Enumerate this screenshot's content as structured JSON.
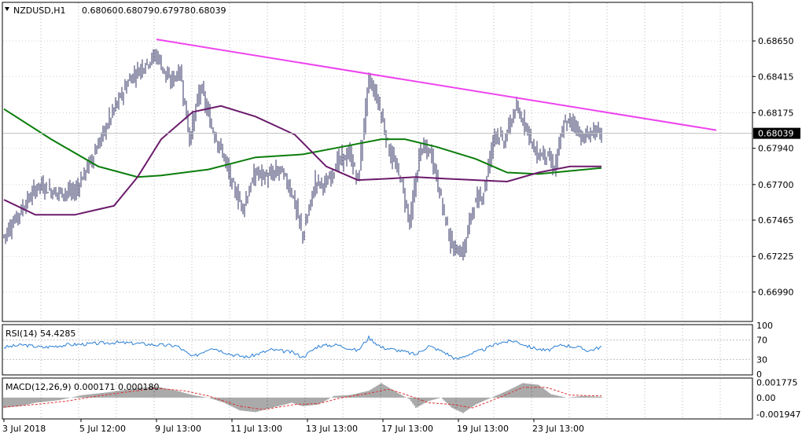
{
  "header": {
    "symbol": "NZDUSD,H1",
    "open": "0.68060",
    "high": "0.68079",
    "low": "0.67978",
    "close": "0.68039"
  },
  "current_price_label": "0.68039",
  "colors": {
    "trendline": "#ee44ee",
    "ma_green": "#0a7d0a",
    "ma_purple": "#6b1a6b",
    "candle_wick": "#333366",
    "rsi": "#2a7fd4",
    "macd_hist": "#555555",
    "macd_signal": "#dd3333",
    "price_badge_bg": "#000000"
  },
  "chart_data": [
    {
      "type": "candlestick",
      "panel": "price",
      "title": "NZDUSD,H1",
      "y_ticks": [
        "0.68650",
        "0.68415",
        "0.68175",
        "0.67940",
        "0.67700",
        "0.67465",
        "0.67225",
        "0.66990"
      ],
      "ylim": [
        0.668,
        0.689
      ],
      "x_tick_labels": [
        "3 Jul 2018",
        "5 Jul 12:00",
        "9 Jul 13:00",
        "11 Jul 13:00",
        "13 Jul 13:00",
        "17 Jul 13:00",
        "19 Jul 13:00",
        "23 Jul 13:00"
      ],
      "x_tick_index": [
        0,
        49,
        97,
        145,
        193,
        241,
        289,
        337
      ],
      "n_bars": 384,
      "close_path": [
        [
          0,
          0.6736
        ],
        [
          12,
          0.6755
        ],
        [
          22,
          0.677
        ],
        [
          32,
          0.6765
        ],
        [
          45,
          0.6765
        ],
        [
          58,
          0.6792
        ],
        [
          70,
          0.682
        ],
        [
          80,
          0.684
        ],
        [
          90,
          0.685
        ],
        [
          97,
          0.6856
        ],
        [
          105,
          0.6838
        ],
        [
          112,
          0.6845
        ],
        [
          118,
          0.68
        ],
        [
          125,
          0.6835
        ],
        [
          132,
          0.6808
        ],
        [
          140,
          0.6788
        ],
        [
          145,
          0.677
        ],
        [
          152,
          0.6755
        ],
        [
          160,
          0.6778
        ],
        [
          168,
          0.6775
        ],
        [
          176,
          0.678
        ],
        [
          183,
          0.6765
        ],
        [
          190,
          0.6736
        ],
        [
          198,
          0.6772
        ],
        [
          205,
          0.677
        ],
        [
          212,
          0.6785
        ],
        [
          220,
          0.679
        ],
        [
          225,
          0.6772
        ],
        [
          232,
          0.684
        ],
        [
          238,
          0.6825
        ],
        [
          245,
          0.6792
        ],
        [
          252,
          0.6775
        ],
        [
          258,
          0.6745
        ],
        [
          265,
          0.6795
        ],
        [
          272,
          0.679
        ],
        [
          278,
          0.676
        ],
        [
          285,
          0.6728
        ],
        [
          292,
          0.6725
        ],
        [
          298,
          0.6755
        ],
        [
          305,
          0.6765
        ],
        [
          312,
          0.6805
        ],
        [
          318,
          0.6798
        ],
        [
          325,
          0.682
        ],
        [
          332,
          0.681
        ],
        [
          338,
          0.679
        ],
        [
          345,
          0.679
        ],
        [
          350,
          0.678
        ],
        [
          356,
          0.681
        ],
        [
          362,
          0.6812
        ],
        [
          368,
          0.68
        ],
        [
          374,
          0.6805
        ],
        [
          380,
          0.6804
        ]
      ],
      "ma_green": [
        [
          0,
          0.682
        ],
        [
          30,
          0.68
        ],
        [
          60,
          0.6782
        ],
        [
          85,
          0.6775
        ],
        [
          100,
          0.6776
        ],
        [
          130,
          0.678
        ],
        [
          160,
          0.6788
        ],
        [
          190,
          0.679
        ],
        [
          215,
          0.6795
        ],
        [
          240,
          0.68
        ],
        [
          255,
          0.68
        ],
        [
          275,
          0.6795
        ],
        [
          300,
          0.6787
        ],
        [
          320,
          0.6778
        ],
        [
          340,
          0.6777
        ],
        [
          360,
          0.6779
        ],
        [
          380,
          0.6781
        ]
      ],
      "ma_purple": [
        [
          0,
          0.676
        ],
        [
          20,
          0.675
        ],
        [
          45,
          0.675
        ],
        [
          70,
          0.6756
        ],
        [
          85,
          0.6775
        ],
        [
          100,
          0.68
        ],
        [
          120,
          0.6818
        ],
        [
          138,
          0.6822
        ],
        [
          160,
          0.6815
        ],
        [
          185,
          0.6803
        ],
        [
          205,
          0.6782
        ],
        [
          225,
          0.6773
        ],
        [
          245,
          0.6774
        ],
        [
          262,
          0.6775
        ],
        [
          280,
          0.6774
        ],
        [
          300,
          0.6773
        ],
        [
          320,
          0.6772
        ],
        [
          340,
          0.6778
        ],
        [
          360,
          0.6782
        ],
        [
          380,
          0.6782
        ]
      ],
      "trendline": {
        "x": [
          97,
          453
        ],
        "y": [
          0.6866,
          0.6806
        ]
      },
      "current_price": 0.68039
    },
    {
      "type": "line",
      "panel": "rsi",
      "title": "RSI(14) 54.4285",
      "y_ticks": [
        "100",
        "70",
        "30",
        "0"
      ],
      "ylim": [
        0,
        100
      ],
      "values_path": [
        [
          0,
          55
        ],
        [
          12,
          60
        ],
        [
          25,
          55
        ],
        [
          40,
          60
        ],
        [
          55,
          62
        ],
        [
          70,
          65
        ],
        [
          85,
          63
        ],
        [
          97,
          60
        ],
        [
          110,
          58
        ],
        [
          120,
          35
        ],
        [
          132,
          55
        ],
        [
          145,
          40
        ],
        [
          155,
          35
        ],
        [
          170,
          50
        ],
        [
          183,
          45
        ],
        [
          190,
          35
        ],
        [
          200,
          58
        ],
        [
          212,
          60
        ],
        [
          225,
          48
        ],
        [
          232,
          75
        ],
        [
          240,
          55
        ],
        [
          252,
          48
        ],
        [
          262,
          40
        ],
        [
          270,
          58
        ],
        [
          280,
          45
        ],
        [
          288,
          30
        ],
        [
          295,
          40
        ],
        [
          305,
          50
        ],
        [
          315,
          65
        ],
        [
          325,
          68
        ],
        [
          335,
          55
        ],
        [
          345,
          48
        ],
        [
          355,
          60
        ],
        [
          365,
          55
        ],
        [
          372,
          48
        ],
        [
          380,
          56
        ]
      ]
    },
    {
      "type": "bar",
      "panel": "macd",
      "title": "MACD(12,26,9) 0.000171 0.000180",
      "y_ticks": [
        "0.001775",
        "0.00",
        "-0.001947"
      ],
      "ylim": [
        -0.0024,
        0.0022
      ],
      "histogram_path": [
        [
          0,
          -0.0012
        ],
        [
          10,
          -0.001
        ],
        [
          20,
          -0.0006
        ],
        [
          35,
          -0.0003
        ],
        [
          50,
          0.0003
        ],
        [
          65,
          0.0006
        ],
        [
          80,
          0.001
        ],
        [
          90,
          0.0012
        ],
        [
          97,
          0.0013
        ],
        [
          110,
          0.0008
        ],
        [
          120,
          0.0003
        ],
        [
          130,
          0.0
        ],
        [
          140,
          -0.0006
        ],
        [
          150,
          -0.0015
        ],
        [
          160,
          -0.0017
        ],
        [
          170,
          -0.0012
        ],
        [
          183,
          -0.0006
        ],
        [
          190,
          -0.001
        ],
        [
          200,
          -0.0008
        ],
        [
          210,
          0.0002
        ],
        [
          220,
          0.0003
        ],
        [
          232,
          0.0008
        ],
        [
          240,
          0.0017
        ],
        [
          250,
          0.0006
        ],
        [
          258,
          -0.0002
        ],
        [
          262,
          -0.0012
        ],
        [
          270,
          -0.0004
        ],
        [
          278,
          0.0
        ],
        [
          285,
          -0.0012
        ],
        [
          292,
          -0.0018
        ],
        [
          300,
          -0.0008
        ],
        [
          310,
          0.0
        ],
        [
          320,
          0.0008
        ],
        [
          330,
          0.0017
        ],
        [
          340,
          0.0015
        ],
        [
          348,
          0.0004
        ],
        [
          358,
          0.0
        ],
        [
          368,
          0.0002
        ],
        [
          380,
          0.0001
        ]
      ],
      "signal_path": [
        [
          0,
          -0.0011
        ],
        [
          20,
          -0.0008
        ],
        [
          40,
          -0.0004
        ],
        [
          60,
          0.0002
        ],
        [
          80,
          0.0007
        ],
        [
          97,
          0.0011
        ],
        [
          115,
          0.0008
        ],
        [
          130,
          0.0002
        ],
        [
          150,
          -0.001
        ],
        [
          165,
          -0.0014
        ],
        [
          185,
          -0.0008
        ],
        [
          200,
          -0.0007
        ],
        [
          215,
          0.0
        ],
        [
          232,
          0.0005
        ],
        [
          245,
          0.001
        ],
        [
          258,
          0.0002
        ],
        [
          270,
          -0.0006
        ],
        [
          285,
          -0.0008
        ],
        [
          298,
          -0.0012
        ],
        [
          315,
          0.0
        ],
        [
          330,
          0.0012
        ],
        [
          345,
          0.0012
        ],
        [
          360,
          0.0003
        ],
        [
          380,
          0.0002
        ]
      ]
    }
  ]
}
